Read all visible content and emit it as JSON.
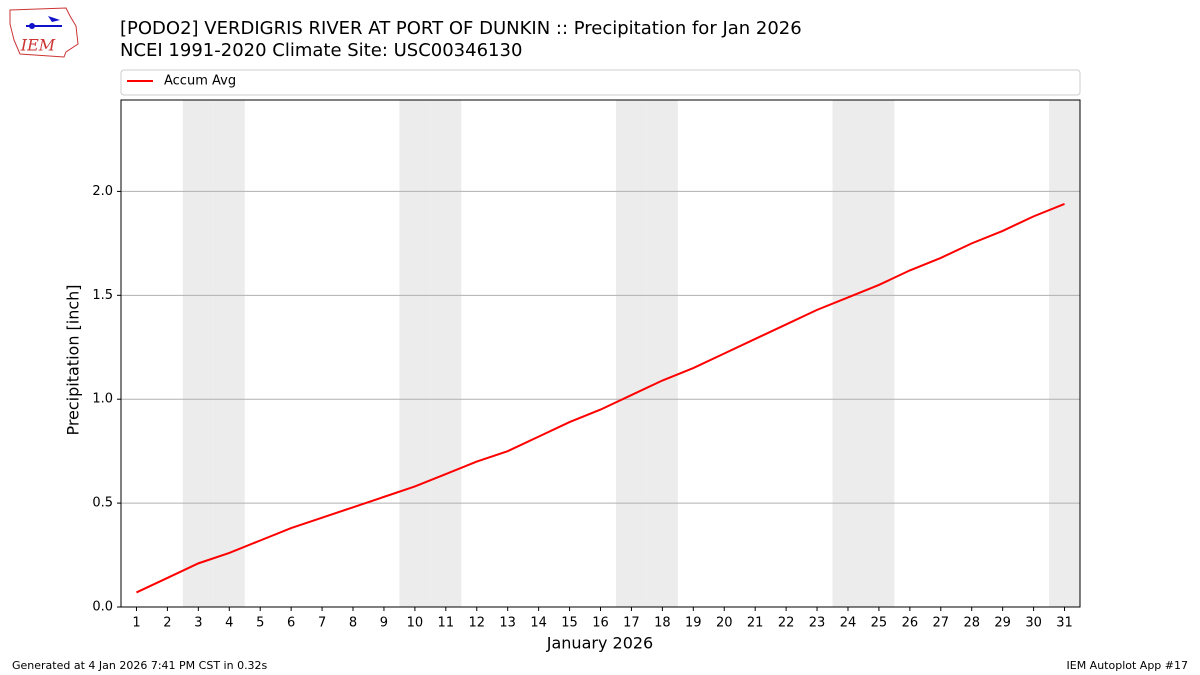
{
  "chart_data": {
    "type": "line",
    "title": "[PODO2] VERDIGRIS RIVER  AT PORT OF DUNKIN :: Precipitation for Jan 2026",
    "subtitle": "NCEI 1991-2020 Climate Site: USC00346130",
    "xlabel": "January 2026",
    "ylabel": "Precipitation [inch]",
    "x": [
      1,
      2,
      3,
      4,
      5,
      6,
      7,
      8,
      9,
      10,
      11,
      12,
      13,
      14,
      15,
      16,
      17,
      18,
      19,
      20,
      21,
      22,
      23,
      24,
      25,
      26,
      27,
      28,
      29,
      30,
      31
    ],
    "series": [
      {
        "name": "Accum Avg",
        "color": "#ff0000",
        "values": [
          0.07,
          0.14,
          0.21,
          0.26,
          0.32,
          0.38,
          0.43,
          0.48,
          0.53,
          0.58,
          0.64,
          0.7,
          0.75,
          0.82,
          0.89,
          0.95,
          1.02,
          1.09,
          1.15,
          1.22,
          1.29,
          1.36,
          1.43,
          1.49,
          1.55,
          1.62,
          1.68,
          1.75,
          1.81,
          1.88,
          1.94
        ]
      }
    ],
    "xlim": [
      0.5,
      31.5
    ],
    "xticks": [
      1,
      2,
      3,
      4,
      5,
      6,
      7,
      8,
      9,
      10,
      11,
      12,
      13,
      14,
      15,
      16,
      17,
      18,
      19,
      20,
      21,
      22,
      23,
      24,
      25,
      26,
      27,
      28,
      29,
      30,
      31
    ],
    "ylim": [
      0,
      2.44
    ],
    "yticks": [
      {
        "value": 0,
        "label": "0.0"
      },
      0.5,
      {
        "value": 1,
        "label": "1.0"
      },
      1.5,
      {
        "value": 2,
        "label": "2.0"
      }
    ],
    "shaded_days": [
      3,
      4,
      10,
      11,
      17,
      18,
      24,
      25,
      31
    ],
    "grid": true,
    "legend": "top"
  },
  "logo": "IEM",
  "footer": {
    "left": "Generated at 4 Jan 2026 7:41 PM CST in 0.32s",
    "right": "IEM Autoplot App #17"
  }
}
